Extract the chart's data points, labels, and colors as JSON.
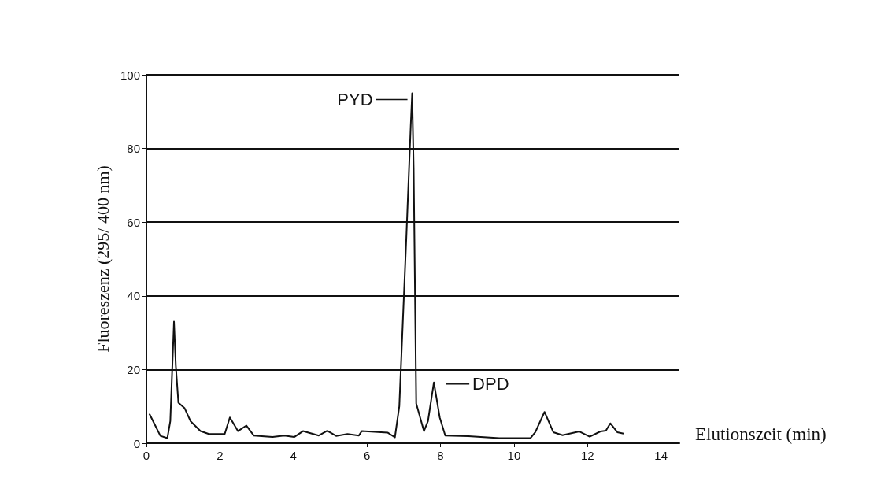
{
  "chart_data": {
    "type": "line",
    "xlabel": "Elutionszeit (min)",
    "ylabel": "Fluoreszenz (295/ 400 nm)",
    "x": [
      0.08,
      0.38,
      0.57,
      0.65,
      0.75,
      0.8,
      0.87,
      1.04,
      1.2,
      1.47,
      1.7,
      2.13,
      2.27,
      2.49,
      2.72,
      2.92,
      3.43,
      3.75,
      4.02,
      4.26,
      4.69,
      4.92,
      5.16,
      5.47,
      5.78,
      5.86,
      6.56,
      6.76,
      6.88,
      7.07,
      7.19,
      7.23,
      7.27,
      7.34,
      7.55,
      7.66,
      7.82,
      7.98,
      8.13,
      8.76,
      9.6,
      10.45,
      10.58,
      10.83,
      11.07,
      11.32,
      11.78,
      12.06,
      12.35,
      12.5,
      12.62,
      12.81,
      12.98
    ],
    "series": [
      {
        "color": "#111111",
        "values": [
          8,
          2,
          1.4,
          6,
          33,
          21,
          11,
          9.5,
          6,
          3.3,
          2.5,
          2.5,
          7,
          3.3,
          4.8,
          2.1,
          1.7,
          2.1,
          1.7,
          3.3,
          2.1,
          3.4,
          2,
          2.5,
          2.1,
          3.3,
          2.9,
          1.6,
          10,
          55.6,
          86,
          95,
          74.6,
          10.8,
          3.3,
          6,
          16.5,
          7,
          2.1,
          1.9,
          1.4,
          1.4,
          3,
          8.5,
          3,
          2.2,
          3.2,
          1.8,
          3.2,
          3.4,
          5.4,
          3,
          2.6
        ]
      }
    ],
    "annotations": [
      {
        "text": "PYD",
        "x": 7.23,
        "y": 95
      },
      {
        "text": "DPD",
        "x": 7.82,
        "y": 16.5
      }
    ],
    "xlim": [
      0,
      14.5
    ],
    "xticks": [
      0,
      2,
      4,
      6,
      8,
      10,
      12,
      14
    ],
    "ylim": [
      0,
      100
    ],
    "yticks": [
      0,
      20,
      40,
      60,
      80,
      100
    ],
    "grid": "y",
    "marker": "none",
    "line_style": "solid"
  }
}
